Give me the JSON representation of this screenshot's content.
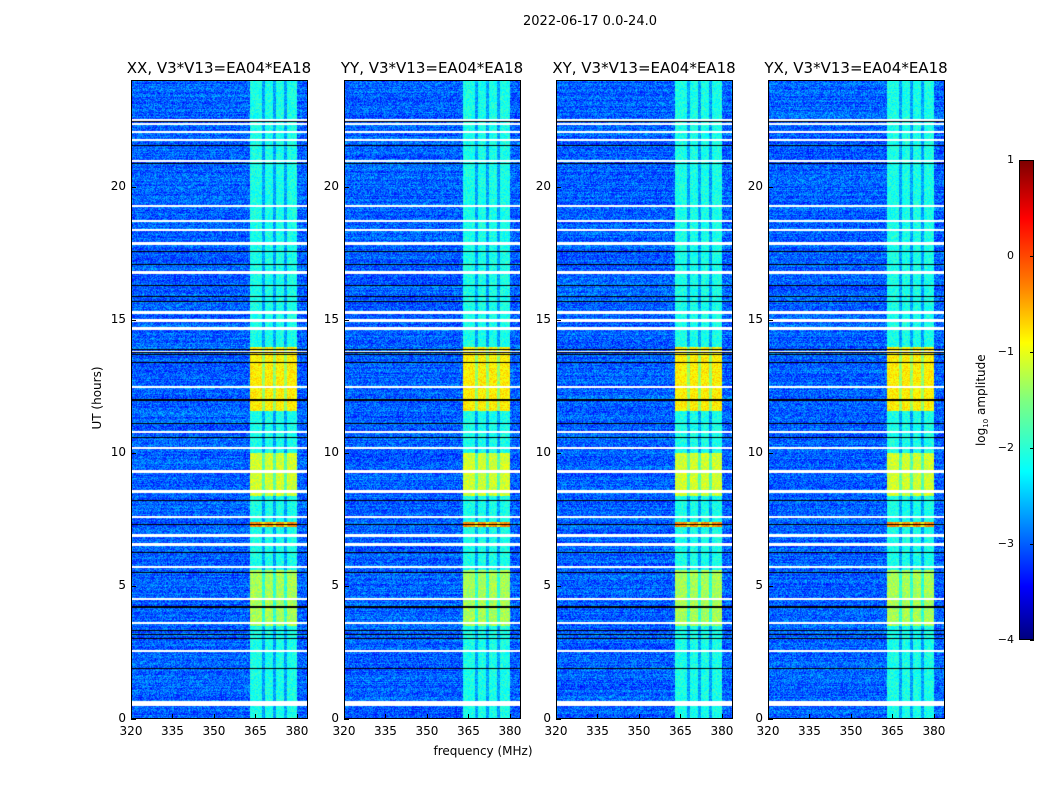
{
  "chart_data": {
    "type": "heatmap",
    "title": "2022-06-17 0.0-24.0",
    "xlabel": "frequency (MHz)",
    "ylabel": "UT (hours)",
    "xlim": [
      320,
      384
    ],
    "ylim": [
      0,
      24
    ],
    "xticks": [
      "320",
      "335",
      "350",
      "365",
      "380"
    ],
    "xtick_values": [
      320,
      335,
      350,
      365,
      380
    ],
    "yticks": [
      "0",
      "5",
      "10",
      "15",
      "20"
    ],
    "ytick_values": [
      0,
      5,
      10,
      15,
      20
    ],
    "panels": [
      {
        "title": "XX, V3*V13=EA04*EA18"
      },
      {
        "title": "YY, V3*V13=EA04*EA18"
      },
      {
        "title": "XY, V3*V13=EA04*EA18"
      },
      {
        "title": "YX, V3*V13=EA04*EA18"
      }
    ],
    "colorbar": {
      "label": "log",
      "label_sub": "10",
      "label_rest": " amplitude",
      "colormap": "jet",
      "range": [
        -4,
        1
      ],
      "ticks": [
        "1",
        "0",
        "−1",
        "−2",
        "−3",
        "−4"
      ],
      "tick_values": [
        1,
        0,
        -1,
        -2,
        -3,
        -4
      ]
    },
    "background_log_amp": -2.9,
    "rfi_band_mhz": [
      363,
      380
    ],
    "rfi_gaps_mhz": [
      368,
      372,
      376
    ],
    "rfi_intervals_hours": [
      {
        "range": [
          0,
          3.5
        ],
        "level": -2.0
      },
      {
        "range": [
          3.5,
          5.6
        ],
        "level": -1.3
      },
      {
        "range": [
          5.6,
          7.2
        ],
        "level": -2.0
      },
      {
        "range": [
          7.2,
          7.4
        ],
        "level": -0.3
      },
      {
        "range": [
          7.4,
          8.4
        ],
        "level": -2.0
      },
      {
        "range": [
          8.4,
          10.0
        ],
        "level": -1.1
      },
      {
        "range": [
          10.0,
          11.6
        ],
        "level": -2.0
      },
      {
        "range": [
          11.6,
          14.0
        ],
        "level": -0.8
      },
      {
        "range": [
          14.0,
          24.0
        ],
        "level": -2.0
      }
    ],
    "flagged_rows_hours": [
      0.5,
      0.6,
      2.55,
      3.6,
      4.5,
      5.7,
      6.55,
      6.9,
      7.6,
      8.55,
      9.3,
      10.2,
      10.8,
      12.5,
      13.8,
      14.7,
      15.0,
      15.3,
      16.8,
      17.9,
      18.4,
      18.75,
      19.3,
      21.0,
      21.8,
      22.1,
      22.4,
      22.55
    ],
    "zero_rows_hours": [
      1.9,
      3.0,
      3.15,
      3.3,
      4.2,
      5.5,
      6.25,
      7.3,
      8.2,
      10.6,
      11.1,
      12.0,
      13.4,
      13.7,
      13.8,
      13.9,
      15.7,
      15.9,
      16.3,
      17.1,
      17.6,
      20.9,
      21.6,
      22.5
    ]
  }
}
